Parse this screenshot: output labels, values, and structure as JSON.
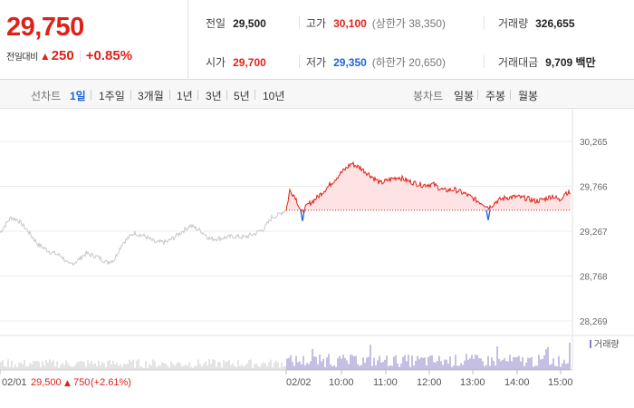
{
  "quote": {
    "price": "29,750",
    "change_label": "전일대비",
    "change_amount": "250",
    "change_rate": "+0.85%",
    "stats": {
      "prev_close": {
        "label": "전일",
        "value": "29,500"
      },
      "high": {
        "label": "고가",
        "value": "30,100",
        "limit_label": "(상한가 38,350)"
      },
      "volume": {
        "label": "거래량",
        "value": "326,655"
      },
      "open": {
        "label": "시가",
        "value": "29,700"
      },
      "low": {
        "label": "저가",
        "value": "29,350",
        "limit_label": "(하한가 20,650)"
      },
      "amount": {
        "label": "거래대금",
        "value": "9,709 백만"
      }
    }
  },
  "tabs": {
    "line_label": "선차트",
    "line_tabs": [
      "1일",
      "1주일",
      "3개월",
      "1년",
      "3년",
      "5년",
      "10년"
    ],
    "active_tab": "1일",
    "candle_label": "봉차트",
    "candle_tabs": [
      "일봉",
      "주봉",
      "월봉"
    ]
  },
  "chart_data": {
    "type": "line",
    "y_ticks": [
      "30,265",
      "29,766",
      "29,267",
      "28,768",
      "28,269"
    ],
    "ylim": [
      28269,
      30265
    ],
    "reference_price": 29500,
    "x_ticks": [
      "02/01",
      "02/02",
      "10:00",
      "11:00",
      "12:00",
      "13:00",
      "14:00",
      "15:00"
    ],
    "prev_day_summary": {
      "date": "02/01",
      "close": "29,500",
      "change": "750",
      "rate": "(+2.61%)"
    },
    "volume_legend": "거래량",
    "colors": {
      "prev_day_line": "#c8c8c8",
      "up_line": "#e0211a",
      "down_line": "#1e63d6",
      "up_fill": "#fde3e3",
      "volume_bar": "#8a7fc7",
      "prev_volume_bar": "#c8c8c8"
    }
  }
}
